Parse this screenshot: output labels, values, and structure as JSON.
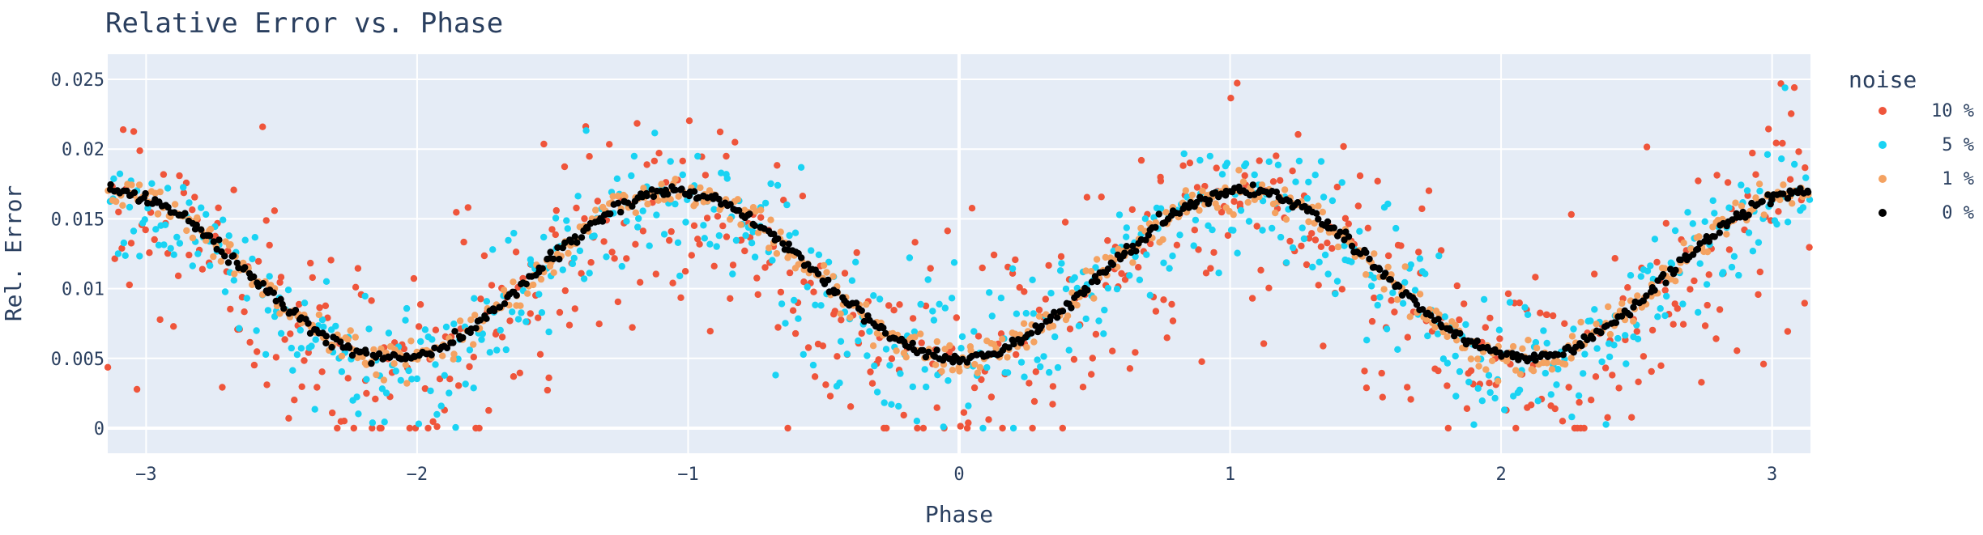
{
  "chart_data": {
    "type": "scatter",
    "title": "Relative Error vs. Phase",
    "xlabel": "Phase",
    "ylabel": "Rel. Error",
    "xlim": [
      -3.1416,
      3.1416
    ],
    "ylim": [
      -0.0018,
      0.0268
    ],
    "x_ticks": [
      -3,
      -2,
      -1,
      0,
      1,
      2,
      3
    ],
    "x_tick_labels": [
      "−3",
      "−2",
      "−1",
      "0",
      "1",
      "2",
      "3"
    ],
    "y_ticks": [
      0,
      0.005,
      0.01,
      0.015,
      0.02,
      0.025
    ],
    "y_tick_labels": [
      "0",
      "0.005",
      "0.01",
      "0.015",
      "0.02",
      "0.025"
    ],
    "grid": true,
    "legend": {
      "title": "noise",
      "placement": "right"
    },
    "base_curve": {
      "form": "0.011 - 0.006*cos(3*phase)",
      "points_per_series": 600
    },
    "series": [
      {
        "name": "10 %",
        "color": "#ef553b",
        "spread": 0.0042
      },
      {
        "name": "5 %",
        "color": "#19d3f3",
        "spread": 0.0024
      },
      {
        "name": "1 %",
        "color": "#f4a261",
        "spread": 0.0006
      },
      {
        "name": "0 %",
        "color": "#000000",
        "spread": 0.0002
      }
    ],
    "colors": {
      "plot_bg": "#e5ecf6",
      "grid": "#ffffff",
      "text": "#2a3f5f"
    }
  }
}
